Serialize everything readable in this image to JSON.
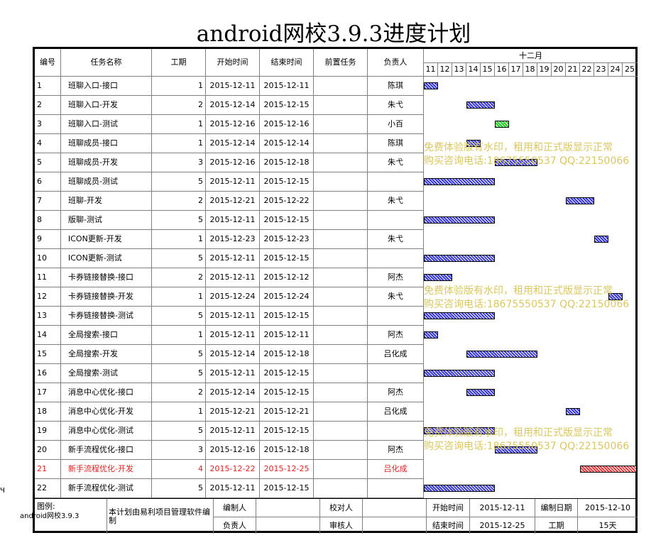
{
  "title": "android网校3.9.3进度计划",
  "headers": {
    "id": "编号",
    "name": "任务名称",
    "duration": "工期",
    "start": "开始时间",
    "end": "结束时间",
    "pred": "前置任务",
    "owner": "负责人",
    "month": "十二月"
  },
  "days": [
    "11",
    "12",
    "13",
    "14",
    "15",
    "16",
    "17",
    "18",
    "19",
    "20",
    "21",
    "22",
    "23",
    "24",
    "25"
  ],
  "tasks": [
    {
      "id": "1",
      "name": "班聊入口-接口",
      "duration": "1",
      "start": "2015-12-11",
      "end": "2015-12-11",
      "owner": "陈琪",
      "color": "blue",
      "bar_start_day": 11,
      "bar_end_day": 11
    },
    {
      "id": "2",
      "name": "班聊入口-开发",
      "duration": "2",
      "start": "2015-12-14",
      "end": "2015-12-15",
      "owner": "朱弋",
      "color": "blue",
      "bar_start_day": 14,
      "bar_end_day": 15
    },
    {
      "id": "3",
      "name": "班聊入口-测试",
      "duration": "1",
      "start": "2015-12-16",
      "end": "2015-12-16",
      "owner": "小百",
      "color": "green",
      "bar_start_day": 16,
      "bar_end_day": 16
    },
    {
      "id": "4",
      "name": "班聊成员-接口",
      "duration": "1",
      "start": "2015-12-14",
      "end": "2015-12-14",
      "owner": "陈琪",
      "color": "blue",
      "bar_start_day": 14,
      "bar_end_day": 14
    },
    {
      "id": "5",
      "name": "班聊成员-开发",
      "duration": "3",
      "start": "2015-12-16",
      "end": "2015-12-18",
      "owner": "朱弋",
      "color": "blue",
      "bar_start_day": 16,
      "bar_end_day": 18
    },
    {
      "id": "6",
      "name": "班聊成员-测试",
      "duration": "5",
      "start": "2015-12-11",
      "end": "2015-12-15",
      "owner": "",
      "color": "blue",
      "bar_start_day": 11,
      "bar_end_day": 15
    },
    {
      "id": "7",
      "name": "班聊-开发",
      "duration": "2",
      "start": "2015-12-21",
      "end": "2015-12-22",
      "owner": "朱弋",
      "color": "blue",
      "bar_start_day": 21,
      "bar_end_day": 22
    },
    {
      "id": "8",
      "name": "版聊-测试",
      "duration": "5",
      "start": "2015-12-11",
      "end": "2015-12-15",
      "owner": "",
      "color": "blue",
      "bar_start_day": 11,
      "bar_end_day": 15
    },
    {
      "id": "9",
      "name": "ICON更新-开发",
      "duration": "1",
      "start": "2015-12-23",
      "end": "2015-12-23",
      "owner": "朱弋",
      "color": "blue",
      "bar_start_day": 23,
      "bar_end_day": 23
    },
    {
      "id": "10",
      "name": "ICON更新-测试",
      "duration": "5",
      "start": "2015-12-11",
      "end": "2015-12-15",
      "owner": "",
      "color": "blue",
      "bar_start_day": 11,
      "bar_end_day": 15
    },
    {
      "id": "11",
      "name": "卡券链接替换-接口",
      "duration": "2",
      "start": "2015-12-11",
      "end": "2015-12-12",
      "owner": "阿杰",
      "color": "blue",
      "bar_start_day": 11,
      "bar_end_day": 12
    },
    {
      "id": "12",
      "name": "卡券链接替换-开发",
      "duration": "1",
      "start": "2015-12-24",
      "end": "2015-12-24",
      "owner": "朱弋",
      "color": "blue",
      "bar_start_day": 24,
      "bar_end_day": 24
    },
    {
      "id": "13",
      "name": "卡券链接替换-测试",
      "duration": "5",
      "start": "2015-12-11",
      "end": "2015-12-15",
      "owner": "",
      "color": "blue",
      "bar_start_day": 11,
      "bar_end_day": 15
    },
    {
      "id": "14",
      "name": "全局搜索-接口",
      "duration": "1",
      "start": "2015-12-11",
      "end": "2015-12-11",
      "owner": "阿杰",
      "color": "blue",
      "bar_start_day": 11,
      "bar_end_day": 11
    },
    {
      "id": "15",
      "name": "全局搜索-开发",
      "duration": "5",
      "start": "2015-12-14",
      "end": "2015-12-18",
      "owner": "吕化成",
      "color": "blue",
      "bar_start_day": 14,
      "bar_end_day": 18
    },
    {
      "id": "16",
      "name": "全局搜索-测试",
      "duration": "5",
      "start": "2015-12-11",
      "end": "2015-12-15",
      "owner": "",
      "color": "blue",
      "bar_start_day": 11,
      "bar_end_day": 15
    },
    {
      "id": "17",
      "name": "消息中心优化-接口",
      "duration": "2",
      "start": "2015-12-14",
      "end": "2015-12-15",
      "owner": "阿杰",
      "color": "blue",
      "bar_start_day": 14,
      "bar_end_day": 15
    },
    {
      "id": "18",
      "name": "消息中心优化-开发",
      "duration": "1",
      "start": "2015-12-21",
      "end": "2015-12-21",
      "owner": "吕化成",
      "color": "blue",
      "bar_start_day": 21,
      "bar_end_day": 21
    },
    {
      "id": "19",
      "name": "消息中心优化-测试",
      "duration": "5",
      "start": "2015-12-11",
      "end": "2015-12-15",
      "owner": "",
      "color": "blue",
      "bar_start_day": 11,
      "bar_end_day": 15
    },
    {
      "id": "20",
      "name": "新手流程优化-接口",
      "duration": "3",
      "start": "2015-12-16",
      "end": "2015-12-18",
      "owner": "阿杰",
      "color": "blue",
      "bar_start_day": 16,
      "bar_end_day": 18
    },
    {
      "id": "21",
      "name": "新手流程优化-开发",
      "duration": "4",
      "start": "2015-12-22",
      "end": "2015-12-25",
      "owner": "吕化成",
      "color": "red",
      "highlight": true,
      "bar_start_day": 22,
      "bar_end_day": 25
    },
    {
      "id": "22",
      "name": "新手流程优化-测试",
      "duration": "5",
      "start": "2015-12-11",
      "end": "2015-12-15",
      "owner": "",
      "color": "blue",
      "bar_start_day": 11,
      "bar_end_day": 15
    }
  ],
  "colors": {
    "blue": "#3a3ad8",
    "green": "#22cc22",
    "red": "#e04040",
    "watermark": "#d9c45a",
    "highlight_text": "#e02020"
  },
  "watermark": {
    "line1": "免费体验版有水印，租用和正式版显示正常",
    "line2": "购买咨询电话:18675550537 QQ:22150066"
  },
  "footer": {
    "legend_label": "图例:",
    "project": "android网校3.9.3",
    "note": "本计划由易利项目管理软件编制",
    "editor_label": "编制人",
    "owner_label": "负责人",
    "checker_label": "校对人",
    "reviewer_label": "审核人",
    "start_label": "开始时间",
    "start_value": "2015-12-11",
    "end_label": "结束时间",
    "end_value": "2015-12-25",
    "made_label": "编制日期",
    "made_value": "2015-12-10",
    "duration_label": "工期",
    "duration_value": "15天"
  },
  "stray_mark": "Ч"
}
